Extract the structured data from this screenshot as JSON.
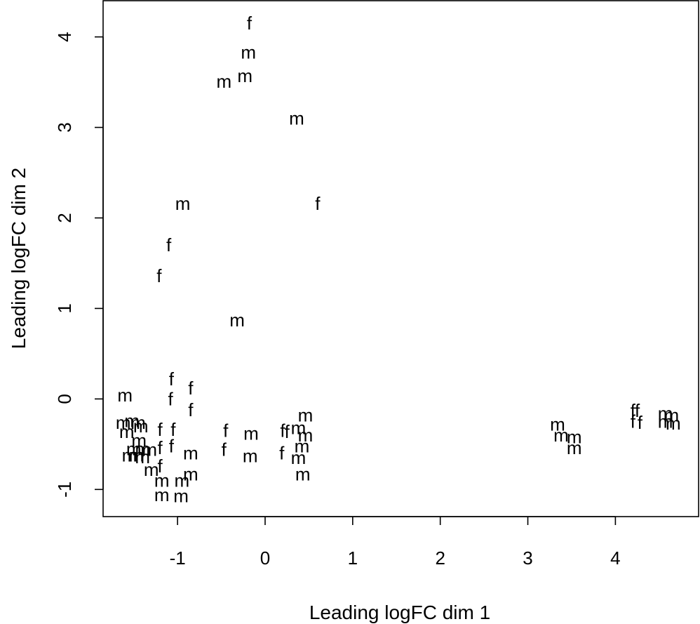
{
  "chart_data": {
    "type": "scatter",
    "title": "",
    "xlabel": "Leading logFC dim 1",
    "ylabel": "Leading logFC dim 2",
    "xlim": [
      -1.85,
      4.95
    ],
    "ylim": [
      -1.3,
      4.4
    ],
    "xticks": [
      -1,
      0,
      1,
      2,
      3,
      4
    ],
    "yticks": [
      -1,
      0,
      1,
      2,
      3,
      4
    ],
    "xtick_labels": [
      "-1",
      "0",
      "1",
      "2",
      "3",
      "4"
    ],
    "ytick_labels": [
      "-1",
      "0",
      "1",
      "2",
      "3",
      "4"
    ],
    "marker": "text",
    "grid": false,
    "points": [
      {
        "x": -0.18,
        "y": 4.15,
        "label": "f"
      },
      {
        "x": -0.19,
        "y": 3.83,
        "label": "m"
      },
      {
        "x": -0.23,
        "y": 3.57,
        "label": "m"
      },
      {
        "x": -0.47,
        "y": 3.51,
        "label": "m"
      },
      {
        "x": 0.36,
        "y": 3.1,
        "label": "m"
      },
      {
        "x": 0.6,
        "y": 2.16,
        "label": "f"
      },
      {
        "x": -0.94,
        "y": 2.16,
        "label": "m"
      },
      {
        "x": -1.1,
        "y": 1.7,
        "label": "f"
      },
      {
        "x": -1.21,
        "y": 1.36,
        "label": "f"
      },
      {
        "x": -0.32,
        "y": 0.87,
        "label": "m"
      },
      {
        "x": -1.6,
        "y": 0.04,
        "label": "m"
      },
      {
        "x": -1.07,
        "y": 0.22,
        "label": "f"
      },
      {
        "x": -1.08,
        "y": 0.0,
        "label": "f"
      },
      {
        "x": -0.85,
        "y": 0.12,
        "label": "f"
      },
      {
        "x": -0.85,
        "y": -0.12,
        "label": "f"
      },
      {
        "x": -1.52,
        "y": -0.24,
        "label": "m"
      },
      {
        "x": -1.62,
        "y": -0.26,
        "label": "m"
      },
      {
        "x": -1.45,
        "y": -0.26,
        "label": "m"
      },
      {
        "x": -1.42,
        "y": -0.3,
        "label": "m"
      },
      {
        "x": -1.58,
        "y": -0.36,
        "label": "m"
      },
      {
        "x": -1.44,
        "y": -0.46,
        "label": "m"
      },
      {
        "x": -1.5,
        "y": -0.55,
        "label": "m"
      },
      {
        "x": -1.4,
        "y": -0.55,
        "label": "m"
      },
      {
        "x": -1.32,
        "y": -0.56,
        "label": "m"
      },
      {
        "x": -1.55,
        "y": -0.62,
        "label": "m"
      },
      {
        "x": -1.47,
        "y": -0.62,
        "label": "m"
      },
      {
        "x": -1.4,
        "y": -0.64,
        "label": "m"
      },
      {
        "x": -1.3,
        "y": -0.78,
        "label": "m"
      },
      {
        "x": -1.2,
        "y": -0.34,
        "label": "f"
      },
      {
        "x": -1.05,
        "y": -0.34,
        "label": "f"
      },
      {
        "x": -1.2,
        "y": -0.54,
        "label": "f"
      },
      {
        "x": -1.07,
        "y": -0.52,
        "label": "f"
      },
      {
        "x": -1.2,
        "y": -0.74,
        "label": "f"
      },
      {
        "x": -0.85,
        "y": -0.6,
        "label": "m"
      },
      {
        "x": -1.18,
        "y": -0.9,
        "label": "m"
      },
      {
        "x": -0.95,
        "y": -0.9,
        "label": "m"
      },
      {
        "x": -0.85,
        "y": -0.83,
        "label": "m"
      },
      {
        "x": -1.18,
        "y": -1.06,
        "label": "m"
      },
      {
        "x": -0.96,
        "y": -1.07,
        "label": "m"
      },
      {
        "x": -0.45,
        "y": -0.35,
        "label": "f"
      },
      {
        "x": -0.47,
        "y": -0.56,
        "label": "f"
      },
      {
        "x": -0.16,
        "y": -0.38,
        "label": "m"
      },
      {
        "x": -0.17,
        "y": -0.63,
        "label": "m"
      },
      {
        "x": 0.2,
        "y": -0.35,
        "label": "f"
      },
      {
        "x": 0.25,
        "y": -0.36,
        "label": "f"
      },
      {
        "x": 0.19,
        "y": -0.6,
        "label": "f"
      },
      {
        "x": 0.38,
        "y": -0.32,
        "label": "m"
      },
      {
        "x": 0.46,
        "y": -0.18,
        "label": "m"
      },
      {
        "x": 0.46,
        "y": -0.4,
        "label": "m"
      },
      {
        "x": 0.42,
        "y": -0.52,
        "label": "m"
      },
      {
        "x": 0.38,
        "y": -0.65,
        "label": "m"
      },
      {
        "x": 0.43,
        "y": -0.83,
        "label": "m"
      },
      {
        "x": 3.34,
        "y": -0.28,
        "label": "m"
      },
      {
        "x": 3.38,
        "y": -0.4,
        "label": "m"
      },
      {
        "x": 3.53,
        "y": -0.42,
        "label": "m"
      },
      {
        "x": 3.53,
        "y": -0.54,
        "label": "m"
      },
      {
        "x": 4.2,
        "y": -0.13,
        "label": "f"
      },
      {
        "x": 4.25,
        "y": -0.13,
        "label": "f"
      },
      {
        "x": 4.2,
        "y": -0.25,
        "label": "f"
      },
      {
        "x": 4.28,
        "y": -0.26,
        "label": "f"
      },
      {
        "x": 4.57,
        "y": -0.16,
        "label": "m"
      },
      {
        "x": 4.64,
        "y": -0.18,
        "label": "m"
      },
      {
        "x": 4.57,
        "y": -0.25,
        "label": "m"
      },
      {
        "x": 4.66,
        "y": -0.27,
        "label": "m"
      }
    ]
  }
}
